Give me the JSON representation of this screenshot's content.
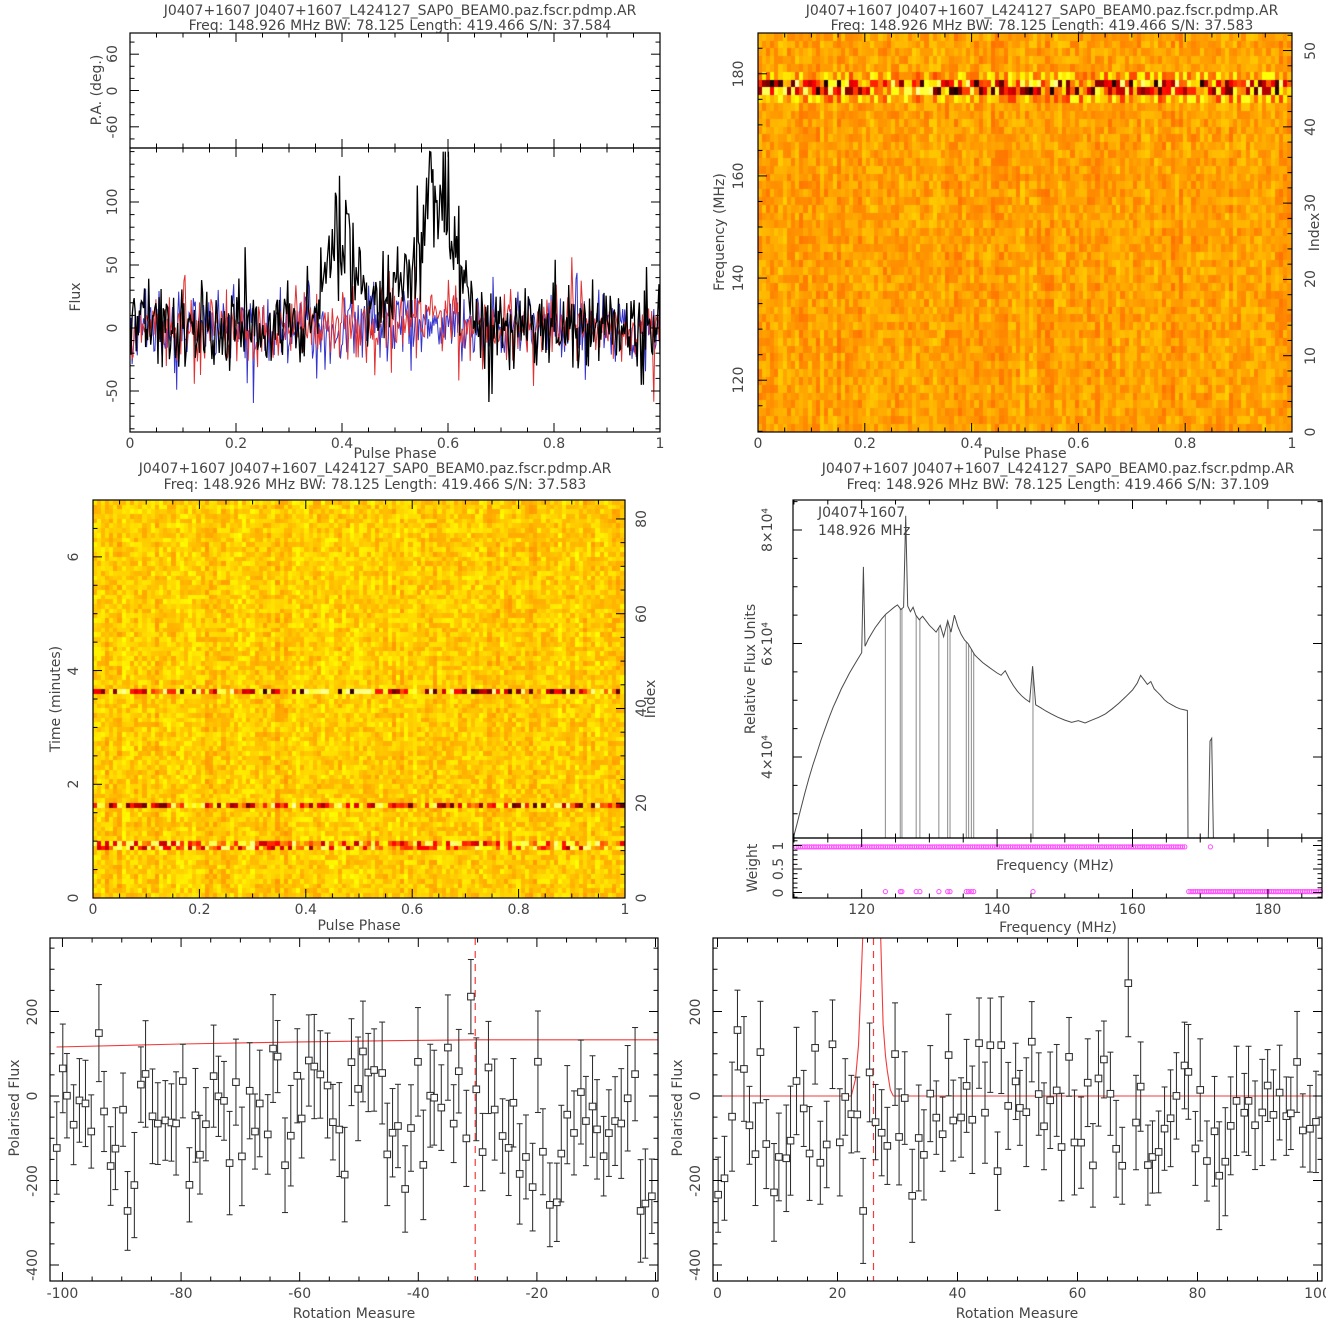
{
  "colors": {
    "background": "#ffffff",
    "axis": "#000000",
    "text": "#454545",
    "profile_total": "#000000",
    "profile_linear": "#e03232",
    "profile_circular": "#3535cd",
    "red_line": "#f23b3b",
    "magenta": "#ff4dff",
    "bandpass_line": "#4a4a4a",
    "scatter": "#2f2f2f"
  },
  "chart_data": [
    {
      "id": "profile",
      "type": "line",
      "title": "J0407+1607 J0407+1607_L424127_SAP0_BEAM0.paz.fscr.pdmp.AR",
      "subtitle": "Freq: 148.926 MHz BW: 78.125 Length: 419.466 S/N: 37.584",
      "xlabel": "Pulse Phase",
      "ylabel_pa": "P.A. (deg.)",
      "ylabel_flux": "Flux",
      "xlim": [
        0,
        1
      ],
      "pa_ylim": [
        -95,
        95
      ],
      "flux_ylim": [
        -82,
        142
      ],
      "xticks": {
        "values": [
          0,
          0.2,
          0.4,
          0.6,
          0.8,
          1
        ],
        "labels": [
          "0",
          "0.2",
          "0.4",
          "0.6",
          "0.8",
          "1"
        ],
        "minor": 0.05
      },
      "pa_ticks": {
        "values": [
          -60,
          0,
          60
        ],
        "labels": [
          "-60",
          "0",
          "60"
        ],
        "minor": 20
      },
      "flux_ticks": {
        "values": [
          -50,
          0,
          50,
          100
        ],
        "labels": [
          "-50",
          "0",
          "50",
          "100"
        ],
        "minor": 10
      },
      "bins": 512,
      "series": [
        {
          "name": "circular-pol",
          "color_key": "profile_circular",
          "noise_sigma": 13,
          "spike_prob": 0.05,
          "spike_amp": 28,
          "pulse_components": []
        },
        {
          "name": "linear-pol",
          "color_key": "profile_linear",
          "noise_sigma": 13,
          "spike_prob": 0.06,
          "spike_amp": 30,
          "pulse_components": [
            {
              "center": 0.57,
              "width": 0.05,
              "amp": 10
            }
          ]
        },
        {
          "name": "total-intensity",
          "color_key": "profile_total",
          "noise_sigma": 17,
          "spike_prob": 0.05,
          "spike_amp": 38,
          "pulse_components": [
            {
              "center": 0.39,
              "width": 0.035,
              "amp": 70
            },
            {
              "center": 0.58,
              "width": 0.045,
              "amp": 95
            },
            {
              "center": 0.49,
              "width": 0.1,
              "amp": 25
            }
          ]
        }
      ],
      "seed": 11
    },
    {
      "id": "freq_phase",
      "type": "heatmap",
      "title": "J0407+1607 J0407+1607_L424127_SAP0_BEAM0.paz.fscr.pdmp.AR",
      "subtitle": "Freq: 148.926 MHz BW: 78.125 Length: 419.466 S/N: 37.583",
      "xlabel": "Pulse Phase",
      "ylabel": "Frequency (MHz)",
      "ylabel_right": "Index",
      "xlim": [
        0,
        1
      ],
      "ylim": [
        109.86,
        187.99
      ],
      "index_lim": [
        0,
        52.3
      ],
      "xticks": {
        "values": [
          0,
          0.2,
          0.4,
          0.6,
          0.8,
          1
        ],
        "labels": [
          "0",
          "0.2",
          "0.4",
          "0.6",
          "0.8",
          "1"
        ],
        "minor": 0.05
      },
      "yticks": {
        "values": [
          120,
          140,
          160,
          180
        ],
        "labels": [
          "120",
          "140",
          "160",
          "180"
        ],
        "minor": 5
      },
      "index_ticks": {
        "values": [
          0,
          10,
          20,
          30,
          40,
          50
        ],
        "labels": [
          "0",
          "10",
          "20",
          "30",
          "40",
          "50"
        ],
        "minor": 2
      },
      "cols": 128,
      "rows": 51,
      "seed": 21,
      "base_level": 0.545,
      "noise": 0.045,
      "rfi_rows": [
        {
          "index": 43,
          "min": 0.03,
          "max": 0.88
        },
        {
          "index": 44,
          "min": 0.03,
          "max": 0.88
        },
        {
          "index": 42,
          "min": 0.4,
          "max": 0.72
        },
        {
          "index": 45,
          "min": 0.42,
          "max": 0.7
        }
      ],
      "rfi_band_mhz": [
        175.5,
        179.5
      ]
    },
    {
      "id": "time_phase",
      "type": "heatmap",
      "title": "J0407+1607 J0407+1607_L424127_SAP0_BEAM0.paz.fscr.pdmp.AR",
      "subtitle": "Freq: 148.926 MHz BW: 78.125 Length: 419.466 S/N: 37.583",
      "xlabel": "Pulse Phase",
      "ylabel": "Time (minutes)",
      "ylabel_right": "Index",
      "xlim": [
        0,
        1
      ],
      "ylim": [
        0,
        7.0
      ],
      "index_lim": [
        0,
        84
      ],
      "xticks": {
        "values": [
          0,
          0.2,
          0.4,
          0.6,
          0.8,
          1
        ],
        "labels": [
          "0",
          "0.2",
          "0.4",
          "0.6",
          "0.8",
          "1"
        ],
        "minor": 0.05
      },
      "yticks": {
        "values": [
          0,
          2,
          4,
          6
        ],
        "labels": [
          "0",
          "2",
          "4",
          "6"
        ],
        "minor": 0.5
      },
      "index_ticks": {
        "values": [
          0,
          20,
          40,
          60,
          80
        ],
        "labels": [
          "0",
          "20",
          "40",
          "60",
          "80"
        ],
        "minor": 5
      },
      "cols": 128,
      "rows": 84,
      "seed": 31,
      "base_level": 0.6,
      "noise": 0.05,
      "rfi_rows": [
        {
          "index": 43,
          "min": 0.05,
          "max": 0.9
        },
        {
          "index": 19,
          "min": 0.1,
          "max": 0.9
        },
        {
          "index": 10,
          "min": 0.2,
          "max": 0.85
        },
        {
          "index": 11,
          "min": 0.25,
          "max": 0.85
        }
      ],
      "rfi_times_min": [
        0.85,
        0.93,
        1.6,
        3.6
      ]
    },
    {
      "id": "bandpass",
      "type": "line",
      "title": "J0407+1607 J0407+1607_L424127_SAP0_BEAM0.paz.fscr.pdmp.AR",
      "subtitle": "Freq: 148.926 MHz BW: 78.125 Length: 419.466 S/N: 37.109",
      "xlabel": "Frequency (MHz)",
      "ylabel": "Relative Flux Units",
      "ylabel_weight": "Weight",
      "weight_label_inside": "Frequency (MHz)",
      "inset_line1": "J0407+1607",
      "inset_line2": "148.926 MHz",
      "xlim": [
        109.86,
        187.99
      ],
      "ylim_1e4": [
        2.55,
        8.53
      ],
      "weight_lim": [
        -0.12,
        1.16
      ],
      "xticks": {
        "values": [
          120,
          140,
          160,
          180
        ],
        "labels": [
          "120",
          "140",
          "160",
          "180"
        ],
        "minor": 5
      },
      "yticks": {
        "values": [
          4,
          6,
          8
        ],
        "labels": [
          "4×10⁴",
          "6×10⁴",
          "8×10⁴"
        ],
        "minor": 0.5
      },
      "weight_ticks": {
        "values": [
          0,
          0.5,
          1
        ],
        "labels": [
          "0",
          "0.5",
          "1"
        ],
        "minor": 0.1
      },
      "curve_1e4": [
        [
          109.9,
          2.56
        ],
        [
          110.4,
          2.8
        ],
        [
          111,
          3.08
        ],
        [
          111.6,
          3.36
        ],
        [
          112.2,
          3.62
        ],
        [
          112.8,
          3.86
        ],
        [
          113.4,
          4.08
        ],
        [
          114,
          4.3
        ],
        [
          114.6,
          4.5
        ],
        [
          115.2,
          4.7
        ],
        [
          115.8,
          4.88
        ],
        [
          116.4,
          5.04
        ],
        [
          117,
          5.2
        ],
        [
          117.6,
          5.34
        ],
        [
          118.2,
          5.48
        ],
        [
          118.8,
          5.6
        ],
        [
          119.4,
          5.72
        ],
        [
          120,
          5.84
        ],
        [
          120.25,
          7.35
        ],
        [
          120.5,
          5.95
        ],
        [
          121,
          6.08
        ],
        [
          121.5,
          6.18
        ],
        [
          122,
          6.28
        ],
        [
          122.5,
          6.36
        ],
        [
          123,
          6.44
        ],
        [
          123.6,
          6.52
        ],
        [
          124.2,
          6.58
        ],
        [
          124.8,
          6.64
        ],
        [
          125.3,
          6.68
        ],
        [
          125.8,
          6.6
        ],
        [
          126.2,
          6.64
        ],
        [
          126.5,
          8.25
        ],
        [
          126.8,
          6.66
        ],
        [
          127.2,
          6.56
        ],
        [
          127.6,
          6.64
        ],
        [
          128,
          6.5
        ],
        [
          128.5,
          6.42
        ],
        [
          129,
          6.48
        ],
        [
          129.5,
          6.4
        ],
        [
          130,
          6.32
        ],
        [
          130.5,
          6.26
        ],
        [
          131,
          6.2
        ],
        [
          131.6,
          6.32
        ],
        [
          132.1,
          6.12
        ],
        [
          132.7,
          6.4
        ],
        [
          133.2,
          6.2
        ],
        [
          133.7,
          6.5
        ],
        [
          134.2,
          6.3
        ],
        [
          134.7,
          6.16
        ],
        [
          135.2,
          6.06
        ],
        [
          135.7,
          6.0
        ],
        [
          136.2,
          5.9
        ],
        [
          136.7,
          5.8
        ],
        [
          137.2,
          5.74
        ],
        [
          137.9,
          5.66
        ],
        [
          138.6,
          5.6
        ],
        [
          139.3,
          5.54
        ],
        [
          140,
          5.48
        ],
        [
          140.6,
          5.44
        ],
        [
          141.2,
          5.52
        ],
        [
          141.8,
          5.38
        ],
        [
          142.4,
          5.26
        ],
        [
          143,
          5.16
        ],
        [
          143.6,
          5.08
        ],
        [
          144.2,
          5.02
        ],
        [
          144.8,
          4.97
        ],
        [
          145.25,
          5.6
        ],
        [
          145.7,
          4.92
        ],
        [
          146.4,
          4.87
        ],
        [
          147.2,
          4.81
        ],
        [
          148,
          4.76
        ],
        [
          149,
          4.7
        ],
        [
          150,
          4.65
        ],
        [
          151,
          4.61
        ],
        [
          152,
          4.64
        ],
        [
          153,
          4.6
        ],
        [
          154,
          4.65
        ],
        [
          155,
          4.7
        ],
        [
          156,
          4.76
        ],
        [
          157,
          4.85
        ],
        [
          158,
          4.95
        ],
        [
          159,
          5.06
        ],
        [
          160,
          5.18
        ],
        [
          160.7,
          5.3
        ],
        [
          161.2,
          5.44
        ],
        [
          161.7,
          5.36
        ],
        [
          162.2,
          5.28
        ],
        [
          162.7,
          5.33
        ],
        [
          163.2,
          5.2
        ],
        [
          163.7,
          5.14
        ],
        [
          164.2,
          5.08
        ],
        [
          164.7,
          5.01
        ],
        [
          165.2,
          4.96
        ],
        [
          165.8,
          4.92
        ],
        [
          166.4,
          4.88
        ],
        [
          167,
          4.85
        ],
        [
          167.7,
          4.83
        ],
        [
          168.1,
          4.82
        ],
        [
          168.2,
          2.56
        ],
        [
          171.2,
          2.56
        ],
        [
          171.45,
          4.28
        ],
        [
          171.7,
          4.33
        ],
        [
          171.95,
          2.56
        ],
        [
          187.9,
          2.56
        ]
      ],
      "zap_channels": [
        123.5,
        125.7,
        125.95,
        128.05,
        128.6,
        131.4,
        132.7,
        133.05,
        135.45,
        135.8,
        136.2,
        136.55,
        145.3
      ],
      "weight_one_span": [
        110.3,
        167.8
      ],
      "weight_zero_span": [
        168.3,
        187.9
      ],
      "weight_one_extra": [
        171.5
      ],
      "weight_zero_extra": [
        123.5,
        125.7,
        125.95,
        128.05,
        128.6,
        131.4,
        132.7,
        133.05,
        135.45,
        135.8,
        136.2,
        136.55,
        145.3
      ]
    },
    {
      "id": "rm_scan_negative",
      "type": "scatter",
      "xlabel": "Rotation Measure",
      "ylabel": "Polarised Flux",
      "xlim": [
        -102.1,
        0.42
      ],
      "ylim": [
        -438,
        374
      ],
      "xticks": {
        "values": [
          -100,
          -80,
          -60,
          -40,
          -20,
          0
        ],
        "labels": [
          "-100",
          "-80",
          "-60",
          "-40",
          "-20",
          "0"
        ],
        "minor": 5
      },
      "yticks": {
        "values": [
          -400,
          -200,
          0,
          200
        ],
        "labels": [
          "-400",
          "-200",
          "0",
          "200"
        ],
        "minor": 50
      },
      "best_rm_dashed": -30.4,
      "red_curve": [
        [
          -101,
          116
        ],
        [
          -80,
          123
        ],
        [
          -60,
          128
        ],
        [
          -45,
          131
        ],
        [
          -30,
          133
        ],
        [
          -15,
          133
        ],
        [
          0.4,
          133
        ]
      ],
      "points": {
        "n": 100,
        "seed": 41,
        "mean": -42,
        "sigma": 105,
        "err_base": 85,
        "err_rand": 45,
        "clip": [
          -272,
          268
        ]
      }
    },
    {
      "id": "rm_scan_positive",
      "type": "scatter",
      "xlabel": "Rotation Measure",
      "ylabel": "Polarised Flux",
      "xlim": [
        -0.75,
        100.75
      ],
      "ylim": [
        -438,
        374
      ],
      "xticks": {
        "values": [
          0,
          20,
          40,
          60,
          80,
          100
        ],
        "labels": [
          "0",
          "20",
          "40",
          "60",
          "80",
          "100"
        ],
        "minor": 5
      },
      "yticks": {
        "values": [
          -400,
          -200,
          0,
          200
        ],
        "labels": [
          "-400",
          "-200",
          "0",
          "200"
        ],
        "minor": 50
      },
      "best_rm_dashed": 26,
      "red_curve": [
        [
          -0.75,
          0
        ],
        [
          22.3,
          0
        ],
        [
          23.0,
          40
        ],
        [
          23.5,
          120
        ],
        [
          23.9,
          260
        ],
        [
          24.2,
          430
        ],
        [
          27.2,
          430
        ],
        [
          27.6,
          170
        ],
        [
          28.0,
          95
        ],
        [
          28.3,
          60
        ],
        [
          28.8,
          15
        ],
        [
          29.3,
          0
        ],
        [
          100.75,
          0
        ]
      ],
      "points": {
        "n": 100,
        "seed": 51,
        "mean": -38,
        "sigma": 100,
        "err_base": 85,
        "err_rand": 45,
        "clip": [
          -272,
          268
        ]
      }
    }
  ]
}
